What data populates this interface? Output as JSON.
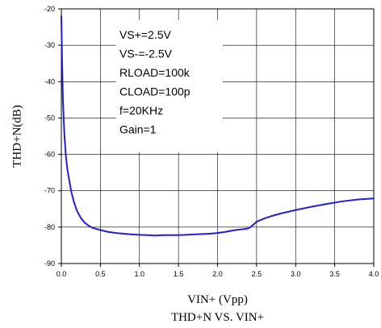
{
  "chart_data": {
    "type": "line",
    "title": "THD+N VS. VIN+",
    "xlabel": "VIN+ (Vpp)",
    "ylabel": "THD+N(dB)",
    "xlim": [
      0.0,
      4.0
    ],
    "ylim": [
      -90,
      -20
    ],
    "xticks": [
      0.0,
      0.5,
      1.0,
      1.5,
      2.0,
      2.5,
      3.0,
      3.5,
      4.0
    ],
    "xtick_labels": [
      "0.0",
      "0.5",
      "1.0",
      "1.5",
      "2.0",
      "2.5",
      "3.0",
      "3.5",
      "4.0"
    ],
    "yticks": [
      -20,
      -30,
      -40,
      -50,
      -60,
      -70,
      -80,
      -90
    ],
    "ytick_labels": [
      "-20",
      "-30",
      "-40",
      "-50",
      "-60",
      "-70",
      "-80",
      "-90"
    ],
    "grid": true,
    "annotations": [
      "VS+=2.5V",
      "VS-=-2.5V",
      "RLOAD=100k",
      "CLOAD=100p",
      "f=20KHz",
      "Gain=1"
    ],
    "series": [
      {
        "color": "#2020d0",
        "x": [
          0.0,
          0.01,
          0.02,
          0.04,
          0.06,
          0.08,
          0.1,
          0.13,
          0.16,
          0.2,
          0.25,
          0.3,
          0.35,
          0.4,
          0.5,
          0.6,
          0.7,
          0.8,
          0.9,
          1.0,
          1.1,
          1.2,
          1.3,
          1.4,
          1.5,
          1.6,
          1.7,
          1.8,
          1.9,
          2.0,
          2.1,
          2.2,
          2.3,
          2.35,
          2.4,
          2.45,
          2.5,
          2.6,
          2.7,
          2.8,
          2.9,
          3.0,
          3.2,
          3.4,
          3.6,
          3.8,
          4.0
        ],
        "y": [
          -22,
          -35,
          -45,
          -55,
          -61,
          -64.5,
          -67,
          -70.5,
          -73,
          -75.5,
          -77.5,
          -78.8,
          -79.6,
          -80.2,
          -80.8,
          -81.3,
          -81.6,
          -81.8,
          -82.0,
          -82.1,
          -82.2,
          -82.3,
          -82.2,
          -82.2,
          -82.2,
          -82.1,
          -82.0,
          -81.9,
          -81.8,
          -81.6,
          -81.3,
          -80.9,
          -80.6,
          -80.5,
          -80.3,
          -79.5,
          -78.5,
          -77.6,
          -76.9,
          -76.3,
          -75.8,
          -75.3,
          -74.4,
          -73.6,
          -72.9,
          -72.4,
          -72.1
        ]
      }
    ]
  }
}
